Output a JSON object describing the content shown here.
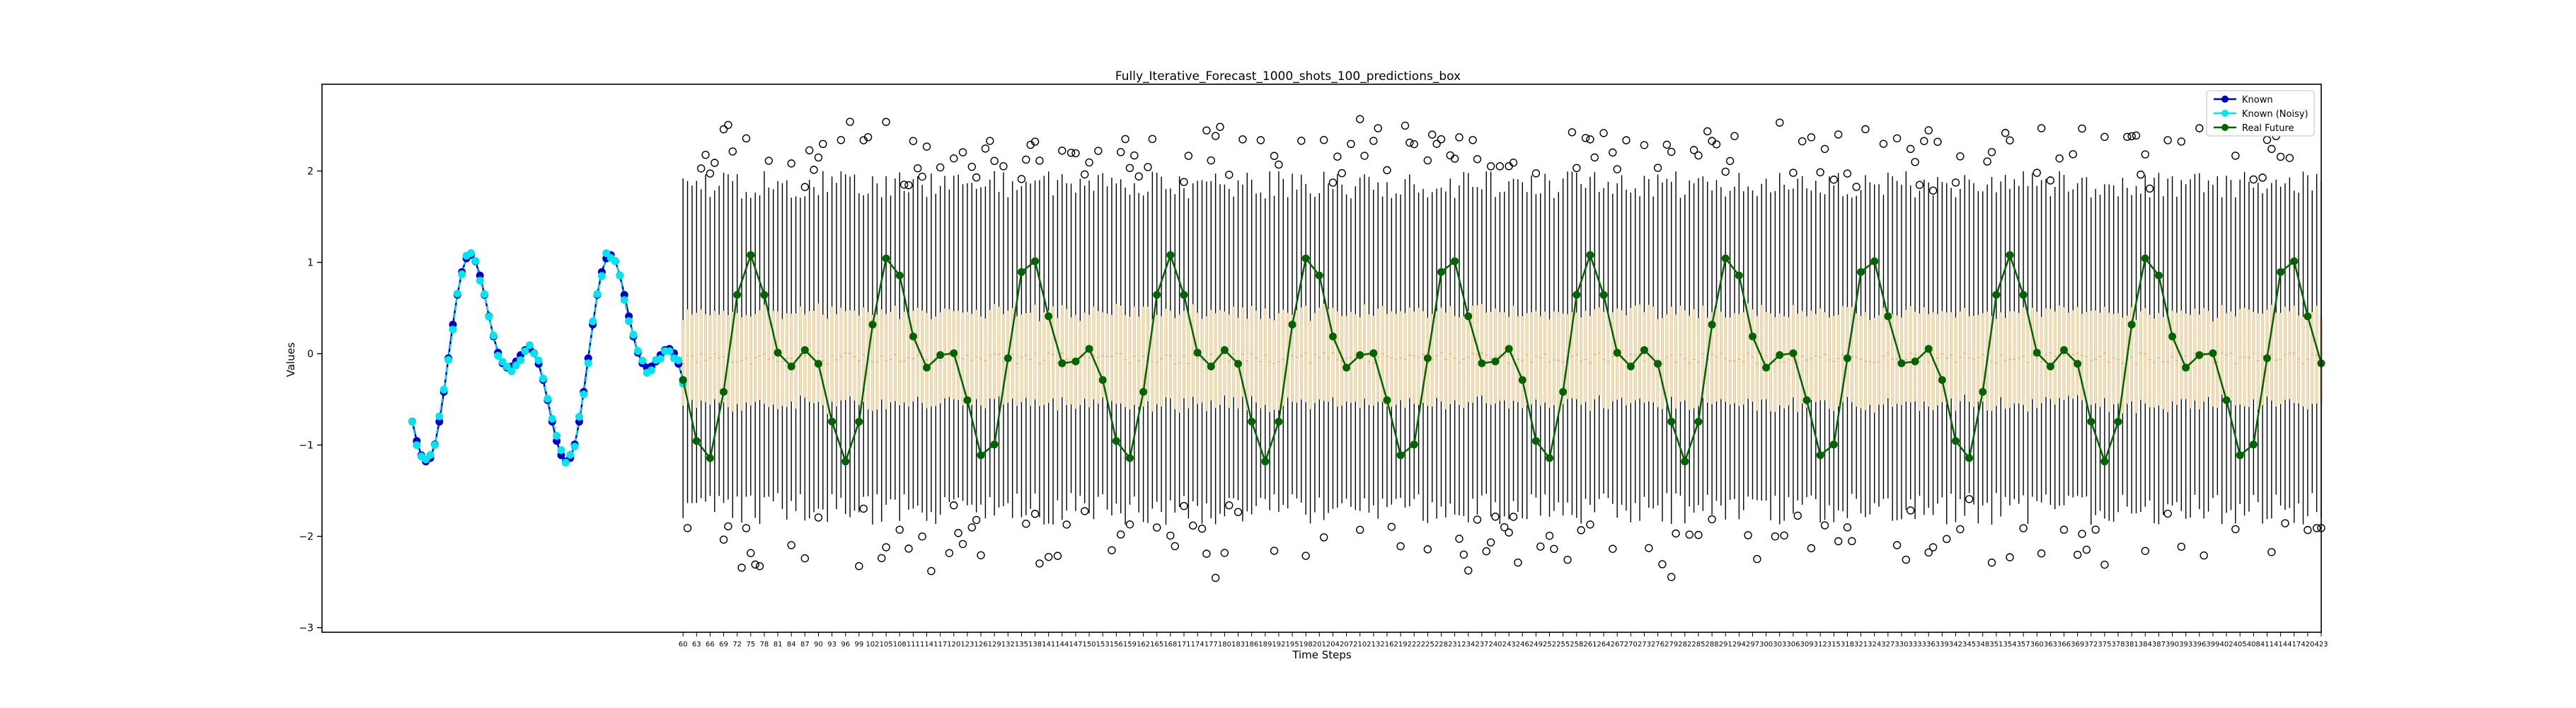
{
  "chart_data": {
    "type": "box",
    "title": "Fully_Iterative_Forecast_1000_shots_100_predictions_box",
    "xlabel": "Time Steps",
    "ylabel": "Values",
    "ylim": [
      -3.05,
      2.95
    ],
    "yticks": [
      -3,
      -2,
      -1,
      0,
      1,
      2
    ],
    "grid": false,
    "legend_position": "top-right",
    "legend": [
      {
        "label": "Known",
        "color": "#0000cd",
        "marker": "circle"
      },
      {
        "label": "Known (Noisy)",
        "color": "#00e5ee",
        "marker": "circle"
      },
      {
        "label": "Real Future",
        "color": "#006400",
        "marker": "circle"
      }
    ],
    "colors": {
      "known": "#0000cd",
      "known_noisy": "#00e5ee",
      "real_future": "#006400",
      "box_fill": "#f5deb3",
      "box_edge": "#000000"
    },
    "signal": {
      "period": 31,
      "amplitude_main": 0.75,
      "amplitude_harmonic": 0.55,
      "phase_shift": 8,
      "offset": -0.05
    },
    "known": {
      "x_start": 0,
      "x_end": 60,
      "note_values_generated_from_signal": true
    },
    "future": {
      "x_start": 60,
      "x_end": 423,
      "box_half_iqr": 0.5,
      "whisker_low": -1.7,
      "whisker_high": 1.85
    }
  }
}
